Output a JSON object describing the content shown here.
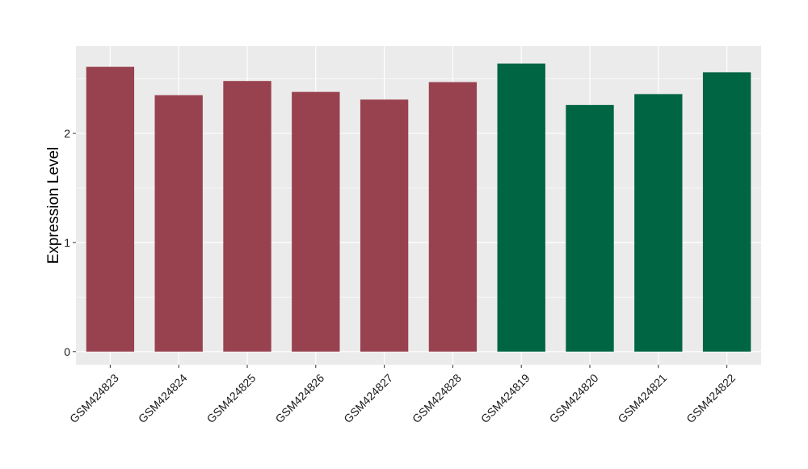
{
  "chart_data": {
    "type": "bar",
    "title": "",
    "xlabel": "",
    "ylabel": "Expression Level",
    "categories": [
      "GSM424823",
      "GSM424824",
      "GSM424825",
      "GSM424826",
      "GSM424827",
      "GSM424828",
      "GSM424819",
      "GSM424820",
      "GSM424821",
      "GSM424822"
    ],
    "values": [
      2.61,
      2.35,
      2.48,
      2.38,
      2.31,
      2.47,
      2.64,
      2.26,
      2.36,
      2.56
    ],
    "bar_colors": [
      "#99424f",
      "#99424f",
      "#99424f",
      "#99424f",
      "#99424f",
      "#99424f",
      "#006543",
      "#006543",
      "#006543",
      "#006543"
    ],
    "ylim": [
      -0.12,
      2.8
    ],
    "yticks": [
      0,
      1,
      2
    ],
    "grid": true,
    "panel_background": "#ebebeb",
    "grid_color": "#ffffff"
  }
}
